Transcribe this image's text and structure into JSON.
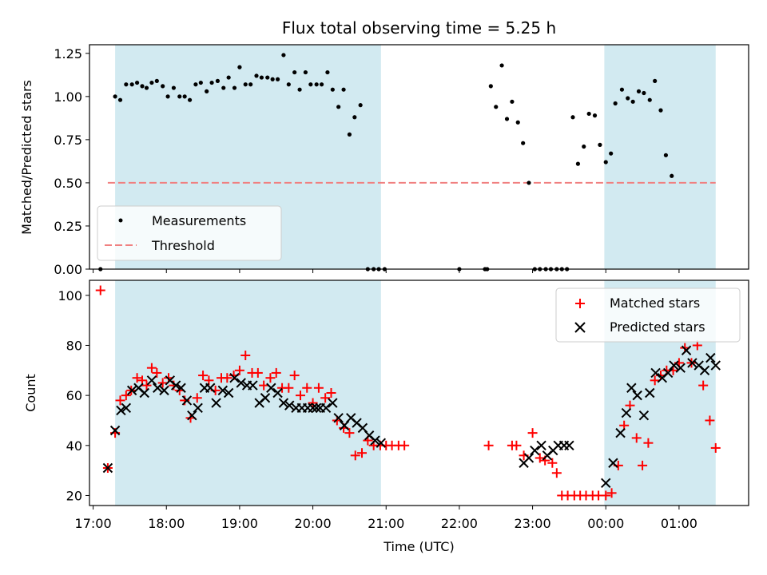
{
  "chart_data": [
    {
      "panel": "top",
      "type": "scatter",
      "title": "Flux total observing time = 5.25 h",
      "xlabel": "",
      "ylabel": "Matched/Predicted stars",
      "xlim_hours": [
        16.95,
        25.95
      ],
      "ylim": [
        0.0,
        1.3
      ],
      "yticks": [
        0.0,
        0.25,
        0.5,
        0.75,
        1.0,
        1.25
      ],
      "ytick_labels": [
        "0.00",
        "0.25",
        "0.50",
        "0.75",
        "1.00",
        "1.25"
      ],
      "observing_windows_hours": [
        [
          17.3,
          20.93
        ],
        [
          23.98,
          25.5
        ]
      ],
      "threshold": {
        "value": 0.5,
        "x_range_hours": [
          17.2,
          25.5
        ],
        "color": "#f08080"
      },
      "legend": [
        "Measurements",
        "Threshold"
      ],
      "legend_location": "lower-left",
      "series": [
        {
          "name": "Measurements",
          "color": "#000000",
          "points": [
            [
              17.1,
              0.0
            ],
            [
              17.3,
              1.0
            ],
            [
              17.37,
              0.98
            ],
            [
              17.45,
              1.07
            ],
            [
              17.53,
              1.07
            ],
            [
              17.6,
              1.08
            ],
            [
              17.67,
              1.06
            ],
            [
              17.73,
              1.05
            ],
            [
              17.8,
              1.08
            ],
            [
              17.87,
              1.09
            ],
            [
              17.95,
              1.06
            ],
            [
              18.02,
              1.0
            ],
            [
              18.1,
              1.05
            ],
            [
              18.18,
              1.0
            ],
            [
              18.25,
              1.0
            ],
            [
              18.32,
              0.98
            ],
            [
              18.4,
              1.07
            ],
            [
              18.47,
              1.08
            ],
            [
              18.55,
              1.03
            ],
            [
              18.62,
              1.08
            ],
            [
              18.7,
              1.09
            ],
            [
              18.78,
              1.05
            ],
            [
              18.85,
              1.11
            ],
            [
              18.93,
              1.05
            ],
            [
              19.0,
              1.17
            ],
            [
              19.08,
              1.07
            ],
            [
              19.15,
              1.07
            ],
            [
              19.23,
              1.12
            ],
            [
              19.3,
              1.11
            ],
            [
              19.38,
              1.11
            ],
            [
              19.45,
              1.1
            ],
            [
              19.52,
              1.1
            ],
            [
              19.6,
              1.24
            ],
            [
              19.67,
              1.07
            ],
            [
              19.75,
              1.14
            ],
            [
              19.82,
              1.04
            ],
            [
              19.9,
              1.14
            ],
            [
              19.97,
              1.07
            ],
            [
              20.05,
              1.07
            ],
            [
              20.12,
              1.07
            ],
            [
              20.2,
              1.14
            ],
            [
              20.27,
              1.04
            ],
            [
              20.35,
              0.94
            ],
            [
              20.42,
              1.04
            ],
            [
              20.5,
              0.78
            ],
            [
              20.57,
              0.88
            ],
            [
              20.65,
              0.95
            ],
            [
              20.75,
              0.0
            ],
            [
              20.83,
              0.0
            ],
            [
              20.9,
              0.0
            ],
            [
              20.98,
              0.0
            ],
            [
              22.0,
              0.0
            ],
            [
              22.35,
              0.0
            ],
            [
              22.38,
              0.0
            ],
            [
              22.43,
              1.06
            ],
            [
              22.5,
              0.94
            ],
            [
              22.58,
              1.18
            ],
            [
              22.65,
              0.87
            ],
            [
              22.72,
              0.97
            ],
            [
              22.8,
              0.85
            ],
            [
              22.87,
              0.73
            ],
            [
              22.95,
              0.5
            ],
            [
              23.03,
              0.0
            ],
            [
              23.1,
              0.0
            ],
            [
              23.18,
              0.0
            ],
            [
              23.25,
              0.0
            ],
            [
              23.33,
              0.0
            ],
            [
              23.4,
              0.0
            ],
            [
              23.47,
              0.0
            ],
            [
              23.55,
              0.88
            ],
            [
              23.62,
              0.61
            ],
            [
              23.7,
              0.71
            ],
            [
              23.77,
              0.9
            ],
            [
              23.85,
              0.89
            ],
            [
              23.92,
              0.72
            ],
            [
              24.0,
              0.62
            ],
            [
              24.07,
              0.67
            ],
            [
              24.13,
              0.96
            ],
            [
              24.22,
              1.04
            ],
            [
              24.3,
              0.99
            ],
            [
              24.37,
              0.97
            ],
            [
              24.45,
              1.03
            ],
            [
              24.52,
              1.02
            ],
            [
              24.6,
              0.98
            ],
            [
              24.67,
              1.09
            ],
            [
              24.75,
              0.92
            ],
            [
              24.82,
              0.66
            ],
            [
              24.9,
              0.54
            ]
          ]
        }
      ]
    },
    {
      "panel": "bottom",
      "type": "scatter",
      "title": "",
      "xlabel": "Time (UTC)",
      "ylabel": "Count",
      "xlim_hours": [
        16.95,
        25.95
      ],
      "ylim": [
        16,
        106
      ],
      "yticks": [
        20,
        40,
        60,
        80,
        100
      ],
      "ytick_labels": [
        "20",
        "40",
        "60",
        "80",
        "100"
      ],
      "xticks_hours": [
        17,
        18,
        19,
        20,
        21,
        22,
        23,
        24,
        25
      ],
      "xtick_labels": [
        "17:00",
        "18:00",
        "19:00",
        "20:00",
        "21:00",
        "22:00",
        "23:00",
        "00:00",
        "01:00"
      ],
      "observing_windows_hours": [
        [
          17.3,
          20.93
        ],
        [
          23.98,
          25.5
        ]
      ],
      "legend": [
        "Matched stars",
        "Predicted stars"
      ],
      "legend_location": "top-right",
      "series": [
        {
          "name": "Matched stars",
          "marker": "plus",
          "color": "#ff0000",
          "points": [
            [
              17.1,
              102
            ],
            [
              17.2,
              31
            ],
            [
              17.3,
              45
            ],
            [
              17.37,
              58
            ],
            [
              17.45,
              60
            ],
            [
              17.52,
              62
            ],
            [
              17.6,
              67
            ],
            [
              17.67,
              66
            ],
            [
              17.73,
              64
            ],
            [
              17.8,
              71
            ],
            [
              17.87,
              69
            ],
            [
              17.95,
              65
            ],
            [
              18.03,
              67
            ],
            [
              18.1,
              64
            ],
            [
              18.18,
              62
            ],
            [
              18.25,
              58
            ],
            [
              18.33,
              51
            ],
            [
              18.42,
              59
            ],
            [
              18.5,
              68
            ],
            [
              18.58,
              66
            ],
            [
              18.67,
              62
            ],
            [
              18.75,
              67
            ],
            [
              18.83,
              67
            ],
            [
              18.92,
              68
            ],
            [
              19.0,
              70
            ],
            [
              19.08,
              76
            ],
            [
              19.17,
              69
            ],
            [
              19.25,
              69
            ],
            [
              19.33,
              64
            ],
            [
              19.42,
              67
            ],
            [
              19.5,
              69
            ],
            [
              19.58,
              63
            ],
            [
              19.67,
              63
            ],
            [
              19.75,
              68
            ],
            [
              19.83,
              60
            ],
            [
              19.92,
              63
            ],
            [
              20.0,
              57
            ],
            [
              20.08,
              63
            ],
            [
              20.17,
              59
            ],
            [
              20.25,
              61
            ],
            [
              20.33,
              50
            ],
            [
              20.42,
              47
            ],
            [
              20.5,
              45
            ],
            [
              20.58,
              36
            ],
            [
              20.67,
              37
            ],
            [
              20.75,
              42
            ],
            [
              20.83,
              40
            ],
            [
              20.92,
              40
            ],
            [
              21.0,
              40
            ],
            [
              21.08,
              40
            ],
            [
              21.17,
              40
            ],
            [
              21.25,
              40
            ],
            [
              22.4,
              40
            ],
            [
              22.72,
              40
            ],
            [
              22.78,
              40
            ],
            [
              22.88,
              36
            ],
            [
              23.0,
              45
            ],
            [
              23.1,
              35
            ],
            [
              23.17,
              34
            ],
            [
              23.27,
              33
            ],
            [
              23.33,
              29
            ],
            [
              23.4,
              20
            ],
            [
              23.48,
              20
            ],
            [
              23.57,
              20
            ],
            [
              23.65,
              20
            ],
            [
              23.73,
              20
            ],
            [
              23.82,
              20
            ],
            [
              23.9,
              20
            ],
            [
              24.0,
              20
            ],
            [
              24.08,
              21
            ],
            [
              24.17,
              32
            ],
            [
              24.25,
              48
            ],
            [
              24.33,
              56
            ],
            [
              24.42,
              43
            ],
            [
              24.5,
              32
            ],
            [
              24.58,
              41
            ],
            [
              24.67,
              66
            ],
            [
              24.75,
              68
            ],
            [
              24.83,
              70
            ],
            [
              24.92,
              70
            ],
            [
              25.0,
              73
            ],
            [
              25.08,
              79
            ],
            [
              25.17,
              73
            ],
            [
              25.25,
              80
            ],
            [
              25.33,
              64
            ],
            [
              25.42,
              50
            ],
            [
              25.5,
              39
            ]
          ]
        },
        {
          "name": "Predicted stars",
          "marker": "x",
          "color": "#000000",
          "points": [
            [
              17.2,
              31
            ],
            [
              17.3,
              46
            ],
            [
              17.38,
              54
            ],
            [
              17.45,
              55
            ],
            [
              17.53,
              62
            ],
            [
              17.62,
              63
            ],
            [
              17.7,
              61
            ],
            [
              17.8,
              66
            ],
            [
              17.88,
              63
            ],
            [
              17.97,
              62
            ],
            [
              18.05,
              66
            ],
            [
              18.13,
              64
            ],
            [
              18.2,
              63
            ],
            [
              18.28,
              58
            ],
            [
              18.35,
              52
            ],
            [
              18.43,
              55
            ],
            [
              18.52,
              63
            ],
            [
              18.6,
              63
            ],
            [
              18.68,
              57
            ],
            [
              18.77,
              62
            ],
            [
              18.85,
              61
            ],
            [
              18.93,
              67
            ],
            [
              19.02,
              65
            ],
            [
              19.1,
              64
            ],
            [
              19.18,
              64
            ],
            [
              19.27,
              57
            ],
            [
              19.35,
              59
            ],
            [
              19.43,
              63
            ],
            [
              19.52,
              61
            ],
            [
              19.6,
              57
            ],
            [
              19.68,
              56
            ],
            [
              19.77,
              55
            ],
            [
              19.85,
              55
            ],
            [
              19.93,
              55
            ],
            [
              20.0,
              55
            ],
            [
              20.05,
              55
            ],
            [
              20.1,
              55
            ],
            [
              20.18,
              55
            ],
            [
              20.27,
              57
            ],
            [
              20.35,
              51
            ],
            [
              20.43,
              48
            ],
            [
              20.52,
              51
            ],
            [
              20.6,
              49
            ],
            [
              20.68,
              47
            ],
            [
              20.77,
              44
            ],
            [
              20.85,
              42
            ],
            [
              20.93,
              41
            ],
            [
              22.88,
              33
            ],
            [
              22.95,
              35
            ],
            [
              23.03,
              38
            ],
            [
              23.12,
              40
            ],
            [
              23.2,
              36
            ],
            [
              23.28,
              38
            ],
            [
              23.35,
              40
            ],
            [
              23.43,
              40
            ],
            [
              23.5,
              40
            ],
            [
              24.0,
              25
            ],
            [
              24.1,
              33
            ],
            [
              24.2,
              45
            ],
            [
              24.28,
              53
            ],
            [
              24.35,
              63
            ],
            [
              24.43,
              60
            ],
            [
              24.52,
              52
            ],
            [
              24.6,
              61
            ],
            [
              24.68,
              69
            ],
            [
              24.77,
              67
            ],
            [
              24.85,
              69
            ],
            [
              24.93,
              72
            ],
            [
              25.02,
              71
            ],
            [
              25.1,
              78
            ],
            [
              25.18,
              73
            ],
            [
              25.27,
              72
            ],
            [
              25.35,
              70
            ],
            [
              25.43,
              75
            ],
            [
              25.5,
              72
            ]
          ]
        }
      ]
    }
  ]
}
